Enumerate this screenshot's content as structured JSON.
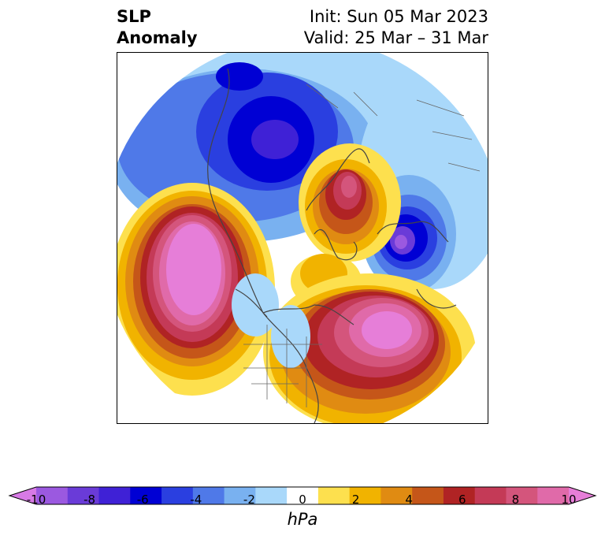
{
  "title": {
    "left_line1": "SLP",
    "left_line2": "Anomaly",
    "right_line1": "Init: Sun 05 Mar 2023",
    "right_line2": "Valid: 25 Mar – 31 Mar"
  },
  "colorbar": {
    "unit": "hPa",
    "tick_labels": [
      "-10",
      "-8",
      "-6",
      "-4",
      "-2",
      "0",
      "2",
      "4",
      "6",
      "8",
      "10"
    ],
    "colors": [
      "#d77ae5",
      "#9b59e0",
      "#6a3bd8",
      "#3f21d6",
      "#0000d4",
      "#2a3fe0",
      "#4f79e8",
      "#79b1f0",
      "#a9d8fa",
      "#ffffff",
      "#fde04e",
      "#f1b300",
      "#e08b12",
      "#c55619",
      "#b02324",
      "#c43a57",
      "#d4557c",
      "#e06aa9",
      "#e67ed8"
    ],
    "extend": "both"
  },
  "map": {
    "projection": "north-polar-stereographic",
    "field": "sea-level-pressure-anomaly",
    "anomalies": [
      {
        "sign": "negative",
        "region": "Siberia / Arctic Russia",
        "peak_hPa": -7
      },
      {
        "sign": "positive",
        "region": "Barents Sea / Scandinavia",
        "peak_hPa": 8
      },
      {
        "sign": "positive",
        "region": "Greenland",
        "peak_hPa": 5
      },
      {
        "sign": "negative",
        "region": "North Atlantic / UK",
        "peak_hPa": -9
      },
      {
        "sign": "positive",
        "region": "Gulf of Alaska / North Pacific",
        "peak_hPa": 11
      },
      {
        "sign": "positive",
        "region": "Western North Atlantic / Eastern US",
        "peak_hPa": 10
      },
      {
        "sign": "negative",
        "region": "Western Pacific",
        "peak_hPa": -4
      }
    ]
  }
}
